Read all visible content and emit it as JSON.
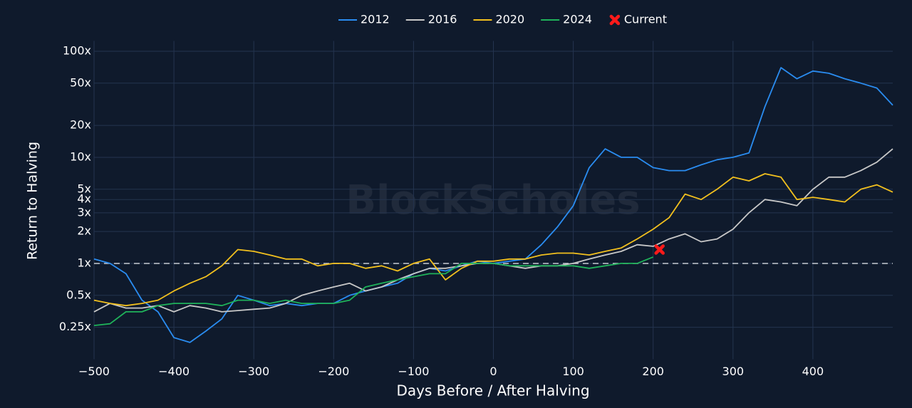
{
  "chart_data": {
    "type": "line",
    "watermark": "BlockScholes",
    "xlabel": "Days Before / After Halving",
    "ylabel": "Return to Halving",
    "log_y": true,
    "grid": true,
    "legend": "top",
    "reference_line": 1,
    "xlim": [
      -500,
      500
    ],
    "ylim": [
      0.125,
      125
    ],
    "xticks": [
      {
        "value": -500,
        "label": "−500"
      },
      {
        "value": -400,
        "label": "−400"
      },
      {
        "value": -300,
        "label": "−300"
      },
      {
        "value": -200,
        "label": "−200"
      },
      {
        "value": -100,
        "label": "−100"
      },
      0,
      100,
      200,
      300,
      400
    ],
    "yticks": [
      {
        "value": 0.25,
        "label": "0.25x"
      },
      {
        "value": 0.5,
        "label": "0.5x"
      },
      {
        "value": 1,
        "label": "1x"
      },
      {
        "value": 2,
        "label": "2x"
      },
      {
        "value": 3,
        "label": "3x"
      },
      {
        "value": 4,
        "label": "4x"
      },
      {
        "value": 5,
        "label": "5x"
      },
      {
        "value": 10,
        "label": "10x"
      },
      {
        "value": 20,
        "label": "20x"
      },
      {
        "value": 50,
        "label": "50x"
      },
      {
        "value": 100,
        "label": "100x"
      }
    ],
    "x": [
      -500,
      -480,
      -460,
      -440,
      -420,
      -400,
      -380,
      -360,
      -340,
      -320,
      -300,
      -280,
      -260,
      -240,
      -220,
      -200,
      -180,
      -160,
      -140,
      -120,
      -100,
      -80,
      -60,
      -40,
      -20,
      0,
      20,
      40,
      60,
      80,
      100,
      120,
      140,
      160,
      180,
      200,
      220,
      240,
      260,
      280,
      300,
      320,
      340,
      360,
      380,
      400,
      420,
      440,
      460,
      480,
      500
    ],
    "series": [
      {
        "name": "2012",
        "color": "#2a8cf0",
        "values": [
          1.1,
          1.0,
          0.8,
          0.45,
          0.35,
          0.2,
          0.18,
          0.23,
          0.3,
          0.5,
          0.45,
          0.4,
          0.42,
          0.4,
          0.42,
          0.42,
          0.5,
          0.55,
          0.6,
          0.65,
          0.8,
          0.9,
          0.85,
          0.95,
          1.05,
          1.0,
          1.05,
          1.1,
          1.5,
          2.2,
          3.5,
          8,
          12,
          10,
          10,
          8,
          7.5,
          7.5,
          8.5,
          9.5,
          10,
          11,
          30,
          70,
          55,
          65,
          62,
          55,
          50,
          45,
          31
        ]
      },
      {
        "name": "2016",
        "color": "#c8c8c8",
        "values": [
          0.35,
          0.42,
          0.38,
          0.38,
          0.4,
          0.35,
          0.4,
          0.38,
          0.35,
          0.36,
          0.37,
          0.38,
          0.42,
          0.5,
          0.55,
          0.6,
          0.65,
          0.55,
          0.6,
          0.7,
          0.8,
          0.9,
          0.9,
          0.95,
          1.0,
          1.0,
          0.95,
          0.9,
          0.95,
          0.95,
          1.0,
          1.1,
          1.2,
          1.3,
          1.5,
          1.45,
          1.7,
          1.9,
          1.6,
          1.7,
          2.1,
          3.0,
          4.0,
          3.8,
          3.5,
          5.0,
          6.5,
          6.5,
          7.5,
          9.0,
          12
        ]
      },
      {
        "name": "2020",
        "color": "#f2c01e",
        "values": [
          0.45,
          0.42,
          0.4,
          0.42,
          0.45,
          0.55,
          0.65,
          0.75,
          0.95,
          1.35,
          1.3,
          1.2,
          1.1,
          1.1,
          0.95,
          1.0,
          1.0,
          0.9,
          0.95,
          0.85,
          1.0,
          1.1,
          0.7,
          0.9,
          1.05,
          1.05,
          1.1,
          1.1,
          1.2,
          1.25,
          1.25,
          1.2,
          1.3,
          1.4,
          1.7,
          2.1,
          2.7,
          4.5,
          4.0,
          5.0,
          6.5,
          6.0,
          7.0,
          6.5,
          4.0,
          4.2,
          4.0,
          3.8,
          5.0,
          5.5,
          4.7
        ]
      },
      {
        "name": "2024",
        "color": "#1fb25a",
        "values": [
          0.26,
          0.27,
          0.35,
          0.35,
          0.4,
          0.42,
          0.42,
          0.42,
          0.4,
          0.45,
          0.45,
          0.42,
          0.45,
          0.42,
          0.42,
          0.42,
          0.45,
          0.6,
          0.65,
          0.7,
          0.75,
          0.8,
          0.8,
          1.0,
          1.0,
          1.0,
          0.95,
          0.95,
          0.95,
          0.95,
          0.95,
          0.9,
          0.95,
          1.0,
          1.0,
          1.15,
          null,
          null,
          null,
          null,
          null,
          null,
          null,
          null,
          null,
          null,
          null,
          null,
          null,
          null,
          null
        ]
      }
    ],
    "current": {
      "name": "Current",
      "color": "#ff1a1a",
      "x": 208,
      "value": 1.35
    }
  }
}
